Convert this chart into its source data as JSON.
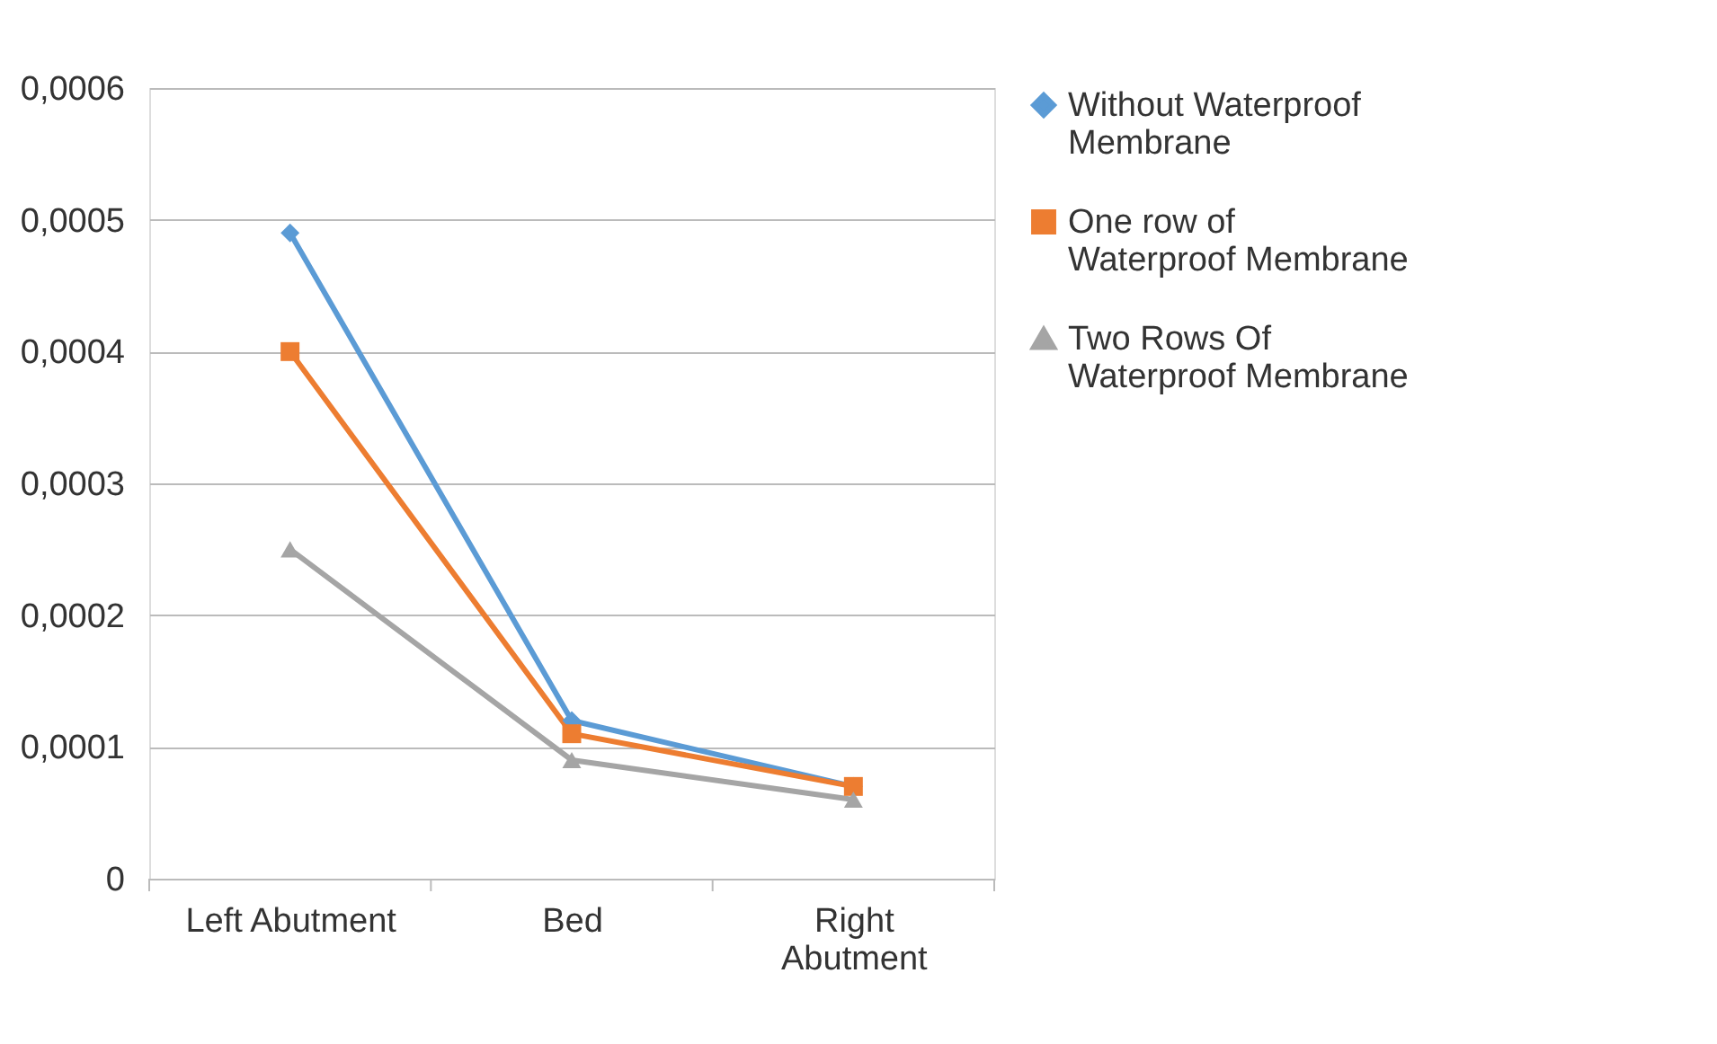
{
  "chart_data": {
    "type": "line",
    "categories": [
      "Left Abutment",
      "Bed",
      "Right Abutment"
    ],
    "series": [
      {
        "name": "Without Waterproof Membrane",
        "color": "#5b9bd5",
        "marker": "diamond",
        "values": [
          0.00049,
          0.00012,
          7e-05
        ]
      },
      {
        "name": "One row of Waterproof Membrane",
        "color": "#ed7d31",
        "marker": "square",
        "values": [
          0.0004,
          0.00011,
          7e-05
        ]
      },
      {
        "name": "Two Rows Of Waterproof Membrane",
        "color": "#a5a5a5",
        "marker": "triangle",
        "values": [
          0.00025,
          9e-05,
          6e-05
        ]
      }
    ],
    "ylim": [
      0,
      0.0006
    ],
    "yticks": [
      {
        "value": 0,
        "label": "0"
      },
      {
        "value": 0.0001,
        "label": "0,0001"
      },
      {
        "value": 0.0002,
        "label": "0,0002"
      },
      {
        "value": 0.0003,
        "label": "0,0003"
      },
      {
        "value": 0.0004,
        "label": "0,0004"
      },
      {
        "value": 0.0005,
        "label": "0,0005"
      },
      {
        "value": 0.0006,
        "label": "0,0006"
      }
    ],
    "grid": "y",
    "legend": "right",
    "line_style": "solid"
  }
}
